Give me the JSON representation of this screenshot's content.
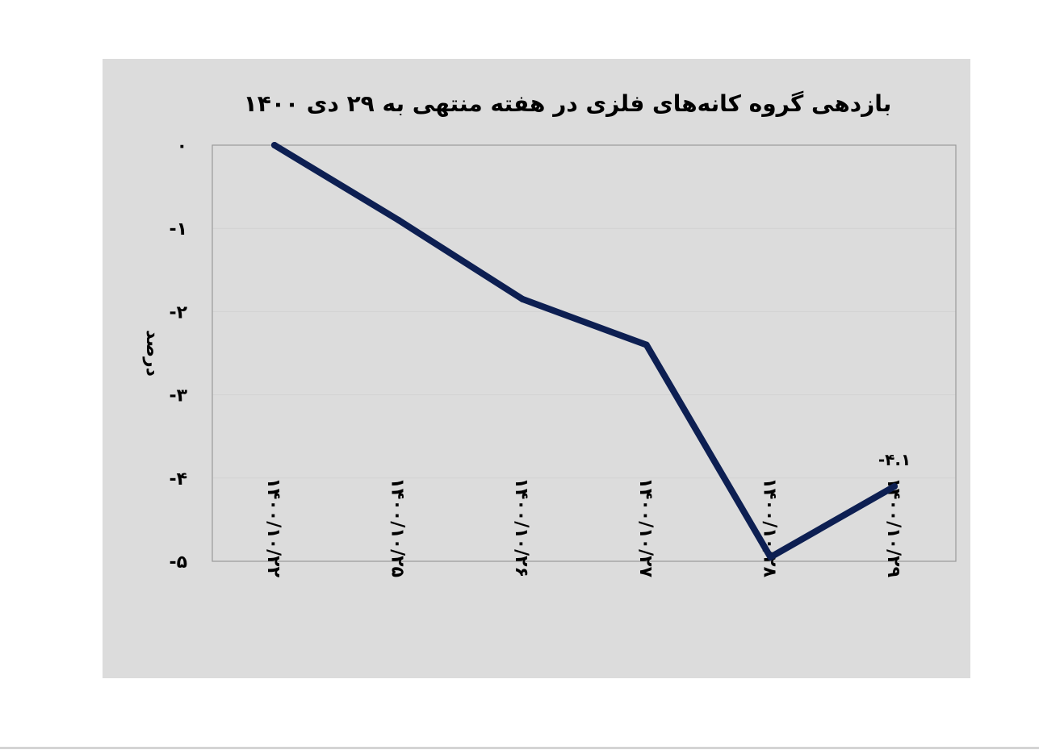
{
  "chart_data": {
    "type": "line",
    "title": "بازدهی گروه کانه‌های فلزی در هفته منتهی به ۲۹ دی ۱۴۰۰",
    "ylabel": "درصد",
    "xlabel": "",
    "categories": [
      "۱۴۰۰/۱۰/۲۲",
      "۱۴۰۰/۱۰/۲۵",
      "۱۴۰۰/۱۰/۲۶",
      "۱۴۰۰/۱۰/۲۷",
      "۱۴۰۰/۱۰/۲۸",
      "۱۴۰۰/۱۰/۲۹"
    ],
    "series": [
      {
        "values": [
          0,
          -0.9,
          -1.85,
          -2.4,
          -4.95,
          -4.1
        ]
      }
    ],
    "ylim": [
      -5,
      0
    ],
    "yticks": [
      0,
      -1,
      -2,
      -3,
      -4,
      -5
    ],
    "ytick_labels": [
      "۰",
      "-۱",
      "-۲",
      "-۳",
      "-۴",
      "-۵"
    ],
    "data_labels": [
      {
        "index": 5,
        "text": "-۴.۱"
      }
    ],
    "grid": true,
    "legend": "none",
    "colors": {
      "line": "#0d1f52",
      "panel": "#dcdcdc",
      "plot_border": "#9a9a9a",
      "grid": "#d2d2d2",
      "text": "#000000"
    }
  }
}
